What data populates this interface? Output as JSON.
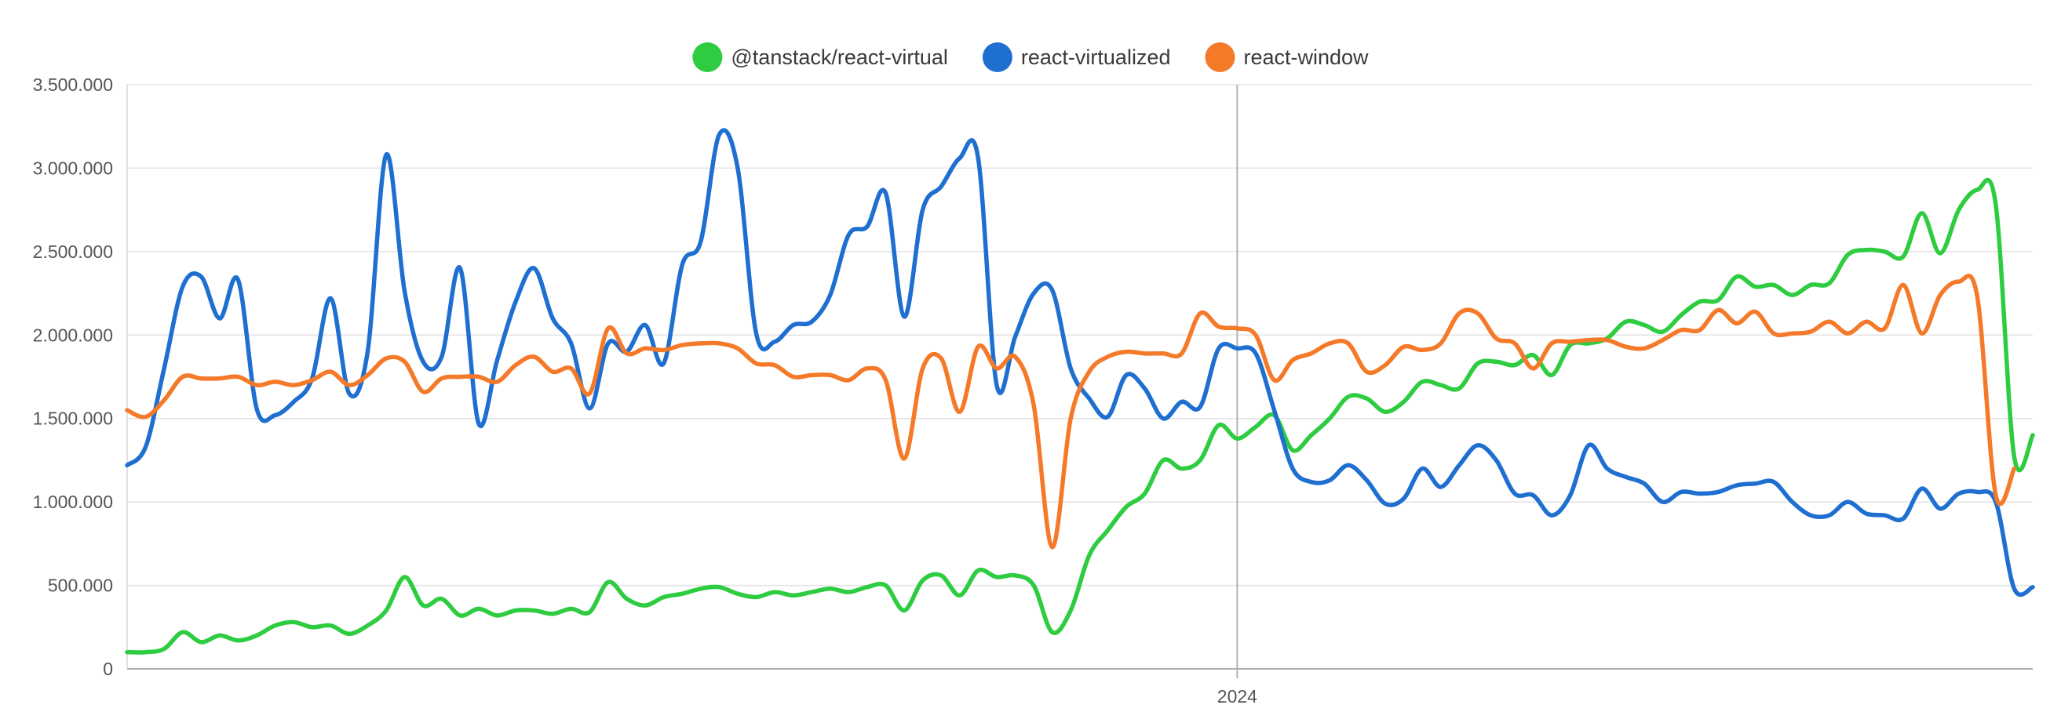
{
  "chart_data": {
    "type": "line",
    "title": "",
    "xlabel": "",
    "ylabel": "",
    "ylim": [
      0,
      3500000
    ],
    "grid": true,
    "legend_position": "top-center",
    "x_tick_labels": [
      {
        "label": "2024",
        "week_index": 60
      }
    ],
    "y_tick_labels": [
      "0",
      "500.000",
      "1.000.000",
      "1.500.000",
      "2.000.000",
      "2.500.000",
      "3.000.000",
      "3.500.000"
    ],
    "y_tick_values": [
      0,
      500000,
      1000000,
      1500000,
      2000000,
      2500000,
      3000000,
      3500000
    ],
    "x_unit": "week",
    "series": [
      {
        "name": "@tanstack/react-virtual",
        "color": "#2ecc40",
        "values": [
          100000,
          100000,
          120000,
          220000,
          160000,
          200000,
          170000,
          200000,
          260000,
          280000,
          250000,
          260000,
          210000,
          260000,
          350000,
          550000,
          380000,
          420000,
          320000,
          360000,
          320000,
          350000,
          350000,
          330000,
          360000,
          340000,
          520000,
          420000,
          380000,
          430000,
          450000,
          480000,
          490000,
          450000,
          430000,
          460000,
          440000,
          460000,
          480000,
          460000,
          490000,
          500000,
          350000,
          530000,
          560000,
          440000,
          590000,
          550000,
          560000,
          500000,
          220000,
          350000,
          680000,
          830000,
          970000,
          1050000,
          1250000,
          1200000,
          1250000,
          1460000,
          1380000,
          1450000,
          1520000,
          1310000,
          1400000,
          1500000,
          1630000,
          1620000,
          1540000,
          1600000,
          1720000,
          1700000,
          1680000,
          1830000,
          1840000,
          1820000,
          1880000,
          1760000,
          1940000,
          1950000,
          1980000,
          2080000,
          2060000,
          2020000,
          2120000,
          2200000,
          2210000,
          2350000,
          2290000,
          2300000,
          2240000,
          2300000,
          2310000,
          2480000,
          2510000,
          2500000,
          2470000,
          2730000,
          2490000,
          2750000,
          2870000,
          2780000,
          1270000,
          1400000
        ]
      },
      {
        "name": "react-virtualized",
        "color": "#1f6fd1",
        "values": [
          1220000,
          1330000,
          1800000,
          2290000,
          2350000,
          2100000,
          2330000,
          1560000,
          1520000,
          1600000,
          1740000,
          2220000,
          1650000,
          1900000,
          3080000,
          2260000,
          1840000,
          1870000,
          2400000,
          1470000,
          1850000,
          2200000,
          2400000,
          2100000,
          1950000,
          1560000,
          1950000,
          1900000,
          2060000,
          1830000,
          2420000,
          2560000,
          3200000,
          3000000,
          2010000,
          1960000,
          2060000,
          2080000,
          2240000,
          2600000,
          2650000,
          2850000,
          2110000,
          2750000,
          2890000,
          3060000,
          3060000,
          1700000,
          1990000,
          2250000,
          2270000,
          1800000,
          1620000,
          1510000,
          1760000,
          1680000,
          1500000,
          1600000,
          1570000,
          1920000,
          1920000,
          1890000,
          1550000,
          1200000,
          1120000,
          1130000,
          1220000,
          1130000,
          990000,
          1020000,
          1200000,
          1090000,
          1220000,
          1340000,
          1250000,
          1050000,
          1040000,
          920000,
          1040000,
          1340000,
          1200000,
          1150000,
          1110000,
          1000000,
          1060000,
          1050000,
          1060000,
          1100000,
          1110000,
          1120000,
          1000000,
          920000,
          920000,
          1000000,
          930000,
          920000,
          900000,
          1080000,
          960000,
          1050000,
          1060000,
          1000000,
          480000,
          490000
        ]
      },
      {
        "name": "react-window",
        "color": "#f47a2a",
        "values": [
          1550000,
          1510000,
          1610000,
          1750000,
          1740000,
          1740000,
          1750000,
          1700000,
          1720000,
          1700000,
          1730000,
          1780000,
          1700000,
          1760000,
          1860000,
          1840000,
          1660000,
          1740000,
          1750000,
          1750000,
          1720000,
          1820000,
          1870000,
          1780000,
          1800000,
          1650000,
          2040000,
          1890000,
          1920000,
          1910000,
          1940000,
          1950000,
          1950000,
          1920000,
          1830000,
          1820000,
          1750000,
          1760000,
          1760000,
          1730000,
          1800000,
          1730000,
          1260000,
          1800000,
          1860000,
          1540000,
          1930000,
          1800000,
          1870000,
          1580000,
          730000,
          1500000,
          1780000,
          1870000,
          1900000,
          1890000,
          1890000,
          1890000,
          2130000,
          2050000,
          2040000,
          2000000,
          1730000,
          1850000,
          1890000,
          1950000,
          1950000,
          1780000,
          1820000,
          1930000,
          1910000,
          1950000,
          2130000,
          2130000,
          1980000,
          1950000,
          1800000,
          1950000,
          1960000,
          1970000,
          1970000,
          1930000,
          1920000,
          1970000,
          2030000,
          2030000,
          2150000,
          2070000,
          2140000,
          2010000,
          2010000,
          2020000,
          2080000,
          2010000,
          2080000,
          2040000,
          2300000,
          2010000,
          2240000,
          2320000,
          2230000,
          1040000,
          1200000
        ]
      }
    ]
  }
}
